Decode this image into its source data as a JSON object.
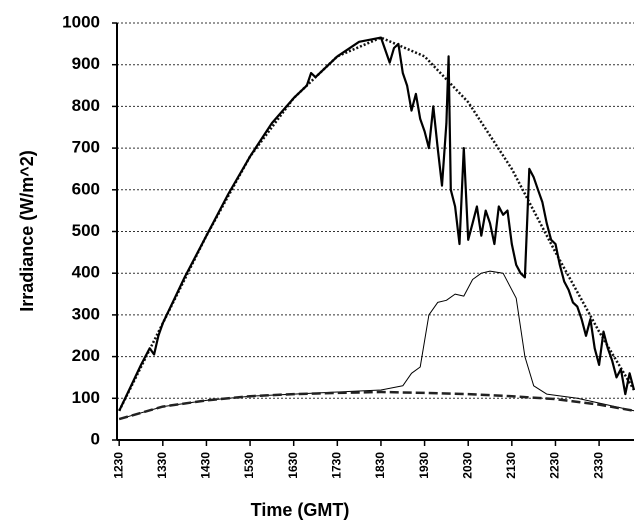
{
  "chart_data": {
    "type": "line",
    "xlabel": "Time (GMT)",
    "ylabel": "Irradiance (W/m^2)",
    "xlim": [
      12.45,
      24.3
    ],
    "ylim": [
      0,
      1000
    ],
    "xticks": [
      {
        "value": 12.5,
        "label": "1230"
      },
      {
        "value": 13.5,
        "label": "1330"
      },
      {
        "value": 14.5,
        "label": "1430"
      },
      {
        "value": 15.5,
        "label": "1530"
      },
      {
        "value": 16.5,
        "label": "1630"
      },
      {
        "value": 17.5,
        "label": "1730"
      },
      {
        "value": 18.5,
        "label": "1830"
      },
      {
        "value": 19.5,
        "label": "1930"
      },
      {
        "value": 20.5,
        "label": "2030"
      },
      {
        "value": 21.5,
        "label": "2130"
      },
      {
        "value": 22.5,
        "label": "2230"
      },
      {
        "value": 23.5,
        "label": "2330"
      }
    ],
    "yticks": [
      0,
      100,
      200,
      300,
      400,
      500,
      600,
      700,
      800,
      900,
      1000
    ],
    "grid": true,
    "series": [
      {
        "color": "#111111",
        "style": "dotted",
        "width": 2.5,
        "x": [
          12.5,
          13.5,
          14.5,
          15.5,
          16.5,
          17.5,
          18.5,
          19.5,
          20.5,
          21.5,
          22.5,
          23.5,
          24.3
        ],
        "values": [
          70,
          280,
          490,
          680,
          820,
          920,
          965,
          920,
          810,
          650,
          450,
          260,
          120
        ]
      },
      {
        "color": "#000000",
        "style": "solid",
        "width": 2.2,
        "x": [
          12.5,
          13.0,
          13.2,
          13.3,
          13.4,
          13.5,
          14,
          14.5,
          15,
          15.5,
          16,
          16.5,
          16.8,
          16.9,
          17,
          17.5,
          18,
          18.5,
          18.7,
          18.8,
          18.9,
          19.0,
          19.1,
          19.2,
          19.3,
          19.4,
          19.5,
          19.6,
          19.7,
          19.8,
          19.9,
          20.0,
          20.05,
          20.1,
          20.2,
          20.3,
          20.4,
          20.5,
          20.6,
          20.7,
          20.8,
          20.9,
          21.0,
          21.1,
          21.2,
          21.3,
          21.4,
          21.5,
          21.6,
          21.7,
          21.8,
          21.9,
          22.0,
          22.1,
          22.2,
          22.3,
          22.4,
          22.5,
          22.6,
          22.7,
          22.8,
          22.9,
          23.0,
          23.1,
          23.2,
          23.3,
          23.4,
          23.5,
          23.6,
          23.7,
          23.8,
          23.9,
          24.0,
          24.1,
          24.2,
          24.3
        ],
        "values": [
          70,
          180,
          220,
          205,
          250,
          280,
          390,
          490,
          590,
          680,
          760,
          820,
          850,
          880,
          870,
          920,
          955,
          965,
          905,
          940,
          950,
          880,
          850,
          790,
          830,
          770,
          740,
          700,
          800,
          700,
          610,
          760,
          920,
          600,
          560,
          470,
          700,
          480,
          520,
          560,
          490,
          550,
          520,
          470,
          560,
          540,
          550,
          470,
          420,
          400,
          390,
          650,
          630,
          600,
          570,
          520,
          480,
          470,
          420,
          380,
          360,
          330,
          320,
          290,
          250,
          290,
          220,
          180,
          260,
          220,
          190,
          150,
          170,
          110,
          160,
          120
        ]
      },
      {
        "color": "#000000",
        "style": "solid",
        "width": 1,
        "x": [
          12.5,
          13.5,
          14.5,
          15.5,
          16.5,
          17.5,
          18.5,
          19.0,
          19.2,
          19.4,
          19.6,
          19.8,
          20.0,
          20.2,
          20.4,
          20.6,
          20.8,
          21.0,
          21.3,
          21.6,
          21.8,
          22.0,
          22.3,
          23.0,
          24.3
        ],
        "values": [
          50,
          80,
          95,
          105,
          110,
          115,
          120,
          130,
          160,
          175,
          300,
          330,
          335,
          350,
          345,
          385,
          400,
          405,
          400,
          340,
          200,
          130,
          110,
          100,
          70
        ]
      },
      {
        "color": "#222222",
        "style": "dashed",
        "width": 2.5,
        "x": [
          12.5,
          13.5,
          14.5,
          15.5,
          16.5,
          17.5,
          18.5,
          19.5,
          20.5,
          21.5,
          22.5,
          23.5,
          24.3
        ],
        "values": [
          50,
          80,
          95,
          105,
          110,
          113,
          115,
          113,
          110,
          105,
          98,
          85,
          70
        ]
      }
    ]
  }
}
